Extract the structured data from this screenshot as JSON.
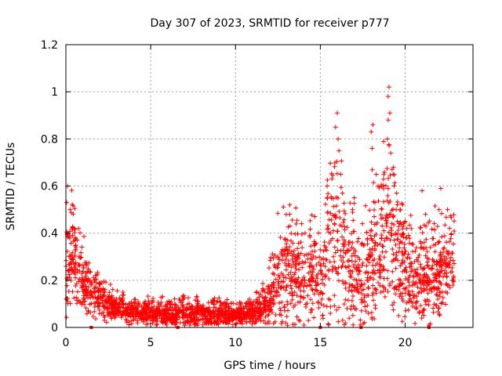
{
  "chart_data": {
    "type": "scatter",
    "title": "Day 307 of 2023, SRMTID for receiver p777",
    "xlabel": "GPS time / hours",
    "ylabel": "SRMTID / TECUs",
    "xlim": [
      0,
      24
    ],
    "ylim": [
      0,
      1.2
    ],
    "x_ticks": [
      {
        "value": 0,
        "label": "0"
      },
      {
        "value": 5,
        "label": "5"
      },
      {
        "value": 10,
        "label": "10"
      },
      {
        "value": 15,
        "label": "15"
      },
      {
        "value": 20,
        "label": "20"
      }
    ],
    "y_ticks": [
      {
        "value": 0,
        "label": "0"
      },
      {
        "value": 0.2,
        "label": "0.2"
      },
      {
        "value": 0.4,
        "label": "0.4"
      },
      {
        "value": 0.6,
        "label": "0.6"
      },
      {
        "value": 0.8,
        "label": "0.8"
      },
      {
        "value": 1.0,
        "label": "1"
      },
      {
        "value": 1.2,
        "label": "1.2"
      }
    ],
    "grid": true,
    "marker": "+",
    "series": [
      {
        "name": "SRMTID",
        "color": "#ff0000",
        "envelope": {
          "description": "approximate central level and spread of the point cloud (hours, TECU)",
          "x": [
            0,
            0.3,
            0.8,
            1.5,
            2.5,
            3.5,
            5,
            7,
            9,
            10,
            11,
            11.8,
            12.5,
            13,
            14,
            15,
            15.5,
            16,
            16.5,
            17,
            17.5,
            18,
            18.5,
            19,
            19.5,
            20,
            21,
            22,
            22.8
          ],
          "y_center": [
            0.2,
            0.35,
            0.22,
            0.14,
            0.1,
            0.07,
            0.06,
            0.06,
            0.055,
            0.05,
            0.06,
            0.09,
            0.2,
            0.25,
            0.23,
            0.22,
            0.3,
            0.4,
            0.3,
            0.22,
            0.2,
            0.3,
            0.33,
            0.42,
            0.35,
            0.26,
            0.2,
            0.24,
            0.28
          ],
          "y_spread": [
            0.08,
            0.12,
            0.08,
            0.05,
            0.03,
            0.025,
            0.025,
            0.025,
            0.025,
            0.02,
            0.025,
            0.04,
            0.1,
            0.1,
            0.09,
            0.09,
            0.14,
            0.18,
            0.13,
            0.1,
            0.09,
            0.14,
            0.14,
            0.17,
            0.15,
            0.1,
            0.08,
            0.1,
            0.08
          ],
          "n_points": 2600,
          "x_range": [
            0,
            22.9
          ]
        },
        "spikes": [
          {
            "x": 0.05,
            "y": 0.53
          },
          {
            "x": 0.1,
            "y": 0.6
          },
          {
            "x": 0.25,
            "y": 0.5
          },
          {
            "x": 0.5,
            "y": 0.42
          },
          {
            "x": 0.55,
            "y": 0.38
          },
          {
            "x": 13.2,
            "y": 0.52
          },
          {
            "x": 13.2,
            "y": 0.48
          },
          {
            "x": 13.9,
            "y": 0.44
          },
          {
            "x": 14.1,
            "y": 0.4
          },
          {
            "x": 15.4,
            "y": 0.6
          },
          {
            "x": 15.4,
            "y": 0.55
          },
          {
            "x": 15.9,
            "y": 0.85
          },
          {
            "x": 16.0,
            "y": 0.91
          },
          {
            "x": 16.05,
            "y": 0.8
          },
          {
            "x": 16.1,
            "y": 0.75
          },
          {
            "x": 16.2,
            "y": 0.65
          },
          {
            "x": 16.3,
            "y": 0.57
          },
          {
            "x": 17.0,
            "y": 0.55
          },
          {
            "x": 16.9,
            "y": 0.5
          },
          {
            "x": 18.0,
            "y": 0.83
          },
          {
            "x": 18.1,
            "y": 0.86
          },
          {
            "x": 18.05,
            "y": 0.76
          },
          {
            "x": 18.3,
            "y": 0.65
          },
          {
            "x": 18.4,
            "y": 0.6
          },
          {
            "x": 19.05,
            "y": 1.02
          },
          {
            "x": 19.0,
            "y": 0.98
          },
          {
            "x": 19.1,
            "y": 0.91
          },
          {
            "x": 19.0,
            "y": 0.88
          },
          {
            "x": 18.95,
            "y": 0.8
          },
          {
            "x": 19.15,
            "y": 0.74
          },
          {
            "x": 19.3,
            "y": 0.65
          },
          {
            "x": 19.35,
            "y": 0.6
          },
          {
            "x": 19.5,
            "y": 0.57
          },
          {
            "x": 20.0,
            "y": 0.45
          },
          {
            "x": 20.1,
            "y": 0.42
          },
          {
            "x": 21.0,
            "y": 0.58
          },
          {
            "x": 21.2,
            "y": 0.48
          },
          {
            "x": 22.1,
            "y": 0.59
          },
          {
            "x": 22.0,
            "y": 0.5
          },
          {
            "x": 22.5,
            "y": 0.5
          }
        ],
        "zero_markers_x": [
          1.5,
          6.6,
          15.0,
          17.4,
          21.4
        ]
      }
    ]
  }
}
